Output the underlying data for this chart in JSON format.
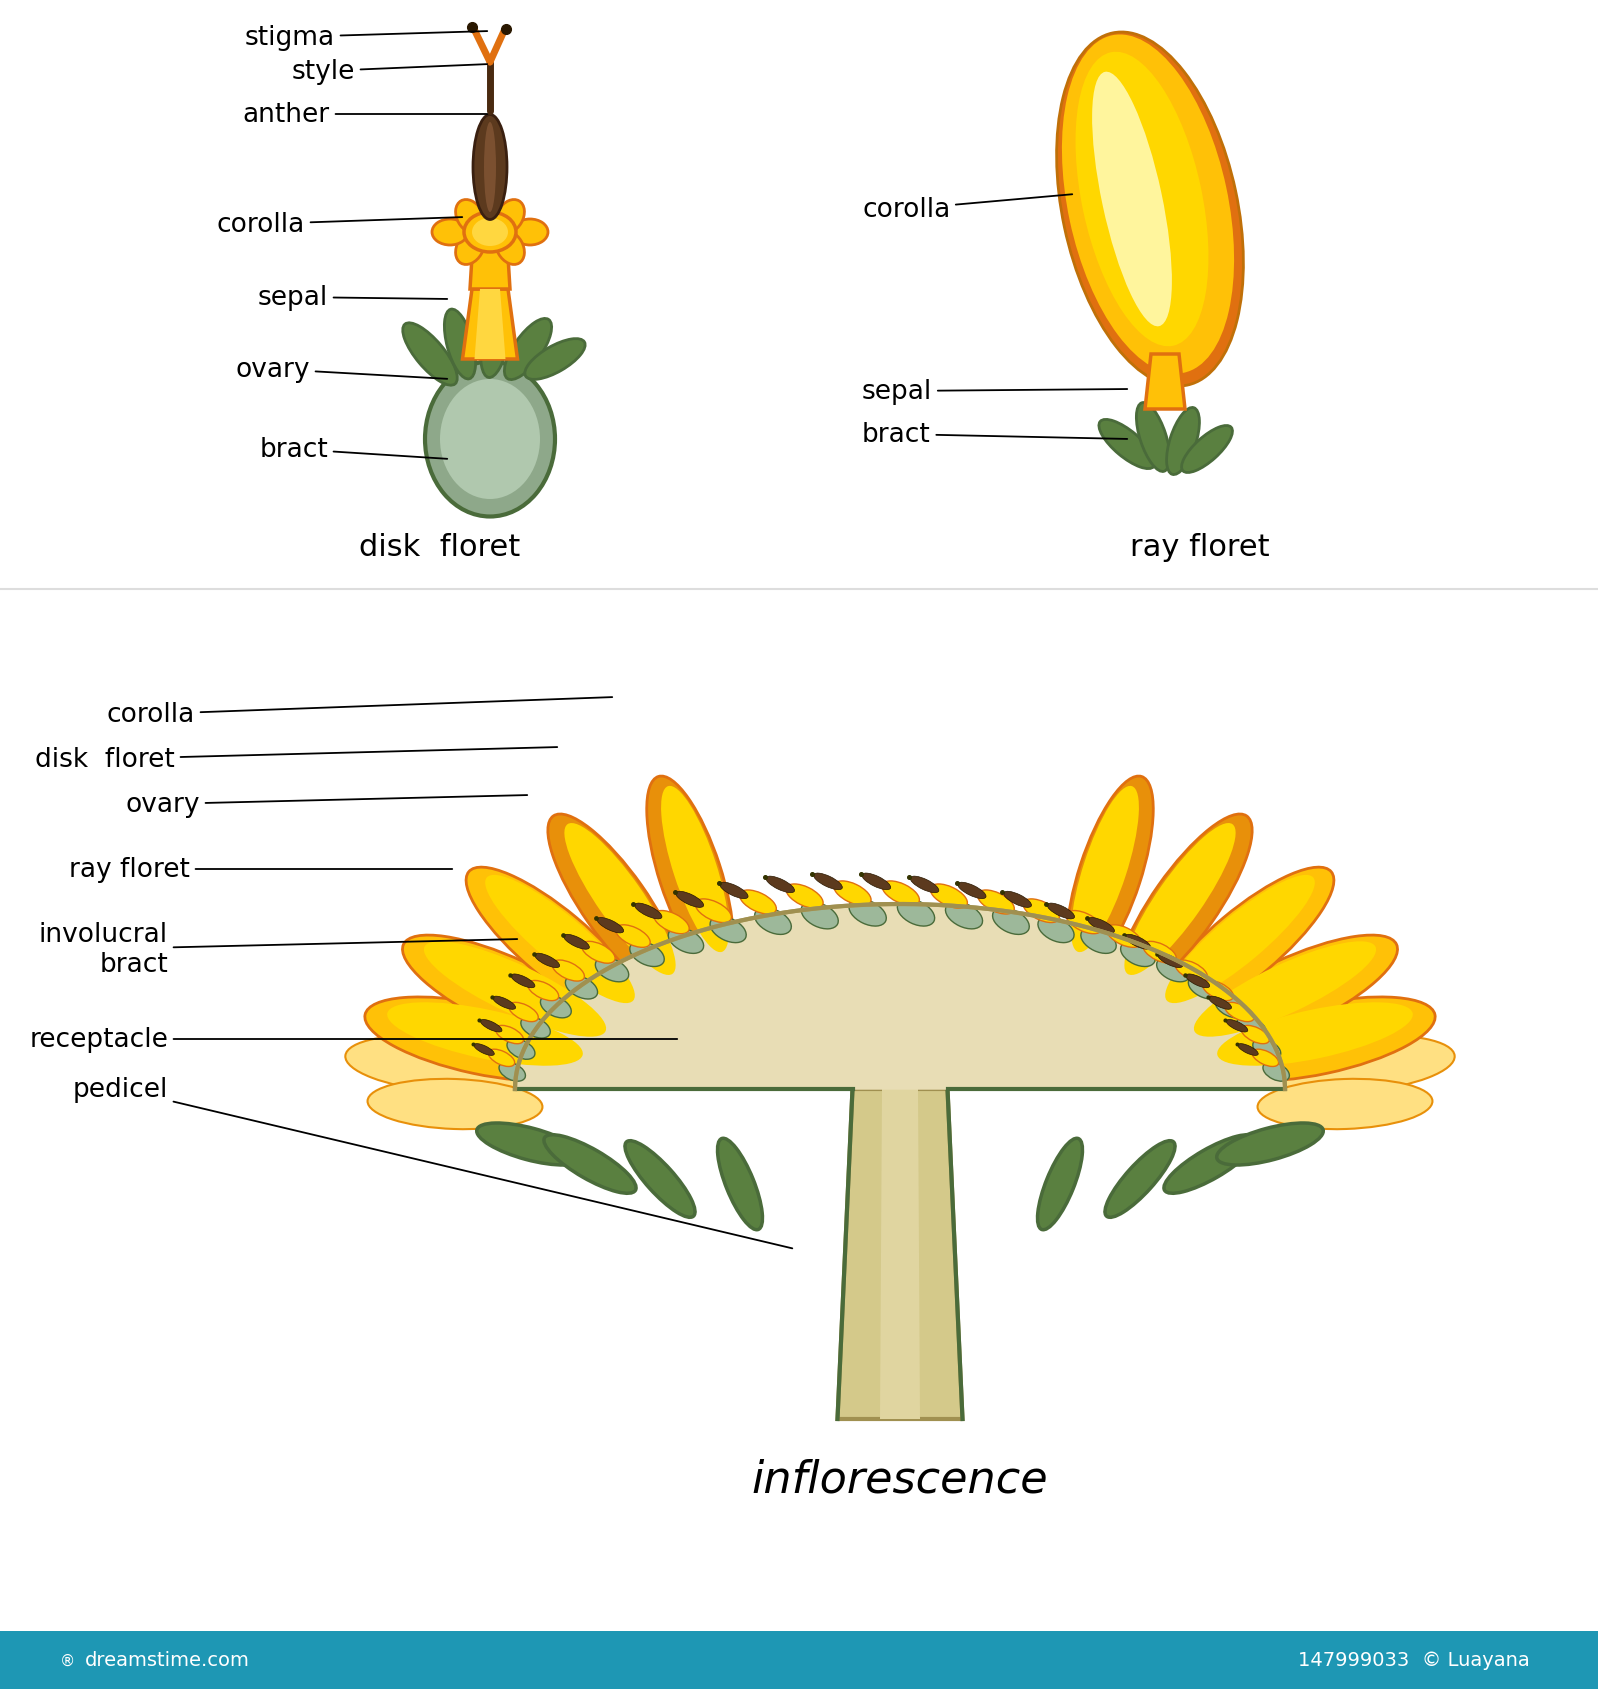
{
  "bg_color": "#ffffff",
  "disk_floret_label": "disk  floret",
  "ray_floret_label": "ray floret",
  "inflorescence_label": "inflorescence",
  "dreamstime_bar_color": "#1E97B4",
  "colors": {
    "yellow_bright": "#FFD700",
    "yellow_light": "#FFF176",
    "yellow_mid": "#FFC107",
    "yellow_dark": "#E8900A",
    "orange_dark": "#E07010",
    "brown_dark": "#5C3A1E",
    "brown_tube": "#6B4020",
    "green_dark": "#4A6B3A",
    "green_med": "#5A8040",
    "green_gray": "#7A9B68",
    "ovary_fill": "#9DB89A",
    "ovary_light": "#C0D0B8",
    "receptacle_fill": "#E8DDB5",
    "stem_fill": "#D4C98A",
    "stem_dark": "#A09050"
  }
}
